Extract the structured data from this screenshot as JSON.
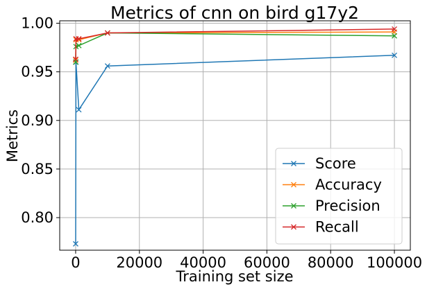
{
  "chart_data": {
    "type": "line",
    "title": "Metrics of cnn on bird g17y2",
    "xlabel": "Training set size",
    "ylabel": "Metrics",
    "xlim": [
      -5000,
      105000
    ],
    "ylim": [
      0.7665,
      1.0025
    ],
    "xticks": [
      0,
      20000,
      40000,
      60000,
      80000,
      100000
    ],
    "yticks": [
      0.8,
      0.85,
      0.9,
      0.95,
      1.0
    ],
    "xtick_labels": [
      "0",
      "20000",
      "40000",
      "60000",
      "80000",
      "100000"
    ],
    "ytick_labels": [
      "0.80",
      "0.85",
      "0.90",
      "0.95",
      "1.00"
    ],
    "grid": true,
    "legend_position": "lower-right",
    "marker": "x",
    "x": [
      10,
      100,
      1000,
      10000,
      100000
    ],
    "series": [
      {
        "name": "Score",
        "color": "#1f77b4",
        "values": [
          0.773,
          0.96,
          0.911,
          0.956,
          0.967
        ]
      },
      {
        "name": "Accuracy",
        "color": "#ff7f0e",
        "values": [
          0.962,
          0.983,
          0.983,
          0.99,
          0.991
        ]
      },
      {
        "name": "Precision",
        "color": "#2ca02c",
        "values": [
          0.96,
          0.976,
          0.977,
          0.99,
          0.987
        ]
      },
      {
        "name": "Recall",
        "color": "#d62728",
        "values": [
          0.963,
          0.984,
          0.984,
          0.99,
          0.994
        ]
      }
    ]
  }
}
